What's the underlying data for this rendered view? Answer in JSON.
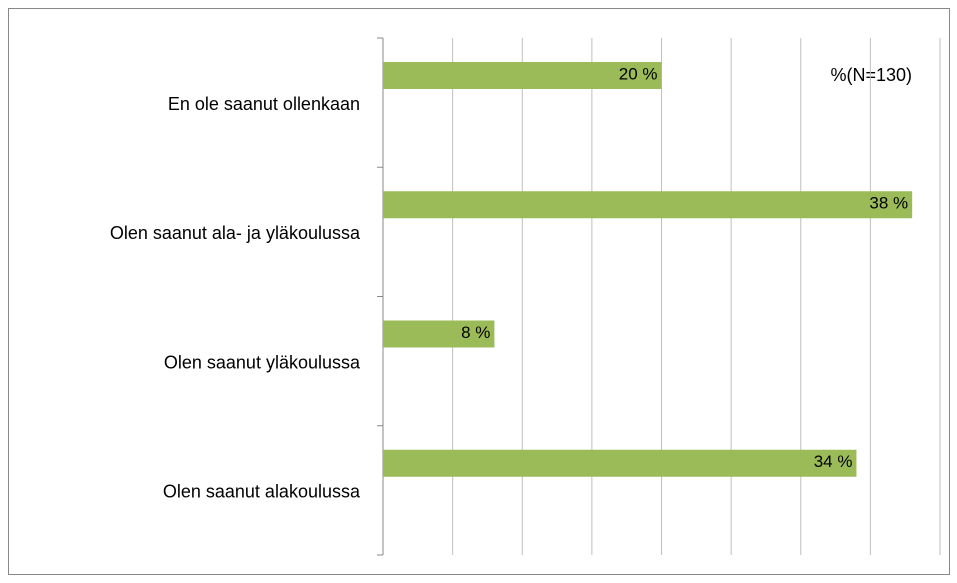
{
  "chart_data": {
    "type": "bar",
    "orientation": "horizontal",
    "categories": [
      "En ole saanut ollenkaan",
      "Olen saanut ala- ja yläkoulussa",
      "Olen saanut yläkoulussa",
      "Olen saanut alakoulussa"
    ],
    "values": [
      20,
      38,
      8,
      34
    ],
    "value_labels": [
      "20 %",
      "38 %",
      "8 %",
      "34 %"
    ],
    "color": "#9bbb59",
    "xlim": [
      0,
      40
    ],
    "xticks": [
      0,
      5,
      10,
      15,
      20,
      25,
      30,
      35,
      40
    ],
    "grid": true,
    "annotation": "%(N=130)"
  }
}
